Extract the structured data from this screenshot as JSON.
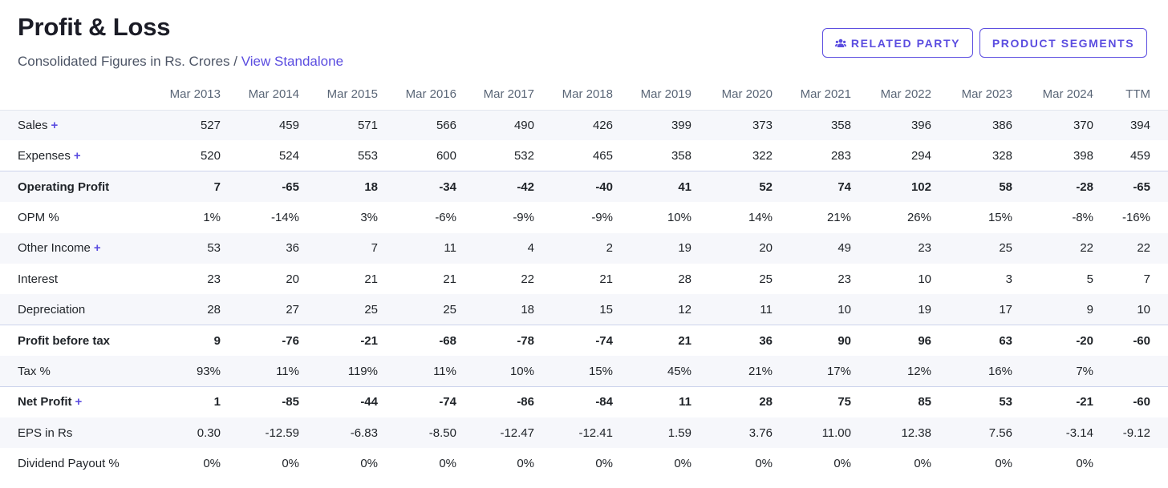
{
  "header": {
    "title": "Profit & Loss",
    "subtitle_prefix": "Consolidated Figures in Rs. Crores / ",
    "subtitle_link": "View Standalone"
  },
  "buttons": {
    "related_party": "RELATED PARTY",
    "product_segments": "PRODUCT SEGMENTS"
  },
  "table": {
    "columns": [
      "Mar 2013",
      "Mar 2014",
      "Mar 2015",
      "Mar 2016",
      "Mar 2017",
      "Mar 2018",
      "Mar 2019",
      "Mar 2020",
      "Mar 2021",
      "Mar 2022",
      "Mar 2023",
      "Mar 2024",
      "TTM"
    ],
    "rows": [
      {
        "label": "Sales",
        "expandable": true,
        "bold": false,
        "divider": false,
        "values": [
          "527",
          "459",
          "571",
          "566",
          "490",
          "426",
          "399",
          "373",
          "358",
          "396",
          "386",
          "370",
          "394"
        ]
      },
      {
        "label": "Expenses",
        "expandable": true,
        "bold": false,
        "divider": false,
        "values": [
          "520",
          "524",
          "553",
          "600",
          "532",
          "465",
          "358",
          "322",
          "283",
          "294",
          "328",
          "398",
          "459"
        ]
      },
      {
        "label": "Operating Profit",
        "expandable": false,
        "bold": true,
        "divider": true,
        "values": [
          "7",
          "-65",
          "18",
          "-34",
          "-42",
          "-40",
          "41",
          "52",
          "74",
          "102",
          "58",
          "-28",
          "-65"
        ]
      },
      {
        "label": "OPM %",
        "expandable": false,
        "bold": false,
        "divider": false,
        "values": [
          "1%",
          "-14%",
          "3%",
          "-6%",
          "-9%",
          "-9%",
          "10%",
          "14%",
          "21%",
          "26%",
          "15%",
          "-8%",
          "-16%"
        ]
      },
      {
        "label": "Other Income",
        "expandable": true,
        "bold": false,
        "divider": false,
        "values": [
          "53",
          "36",
          "7",
          "11",
          "4",
          "2",
          "19",
          "20",
          "49",
          "23",
          "25",
          "22",
          "22"
        ]
      },
      {
        "label": "Interest",
        "expandable": false,
        "bold": false,
        "divider": false,
        "values": [
          "23",
          "20",
          "21",
          "21",
          "22",
          "21",
          "28",
          "25",
          "23",
          "10",
          "3",
          "5",
          "7"
        ]
      },
      {
        "label": "Depreciation",
        "expandable": false,
        "bold": false,
        "divider": false,
        "values": [
          "28",
          "27",
          "25",
          "25",
          "18",
          "15",
          "12",
          "11",
          "10",
          "19",
          "17",
          "9",
          "10"
        ]
      },
      {
        "label": "Profit before tax",
        "expandable": false,
        "bold": true,
        "divider": true,
        "values": [
          "9",
          "-76",
          "-21",
          "-68",
          "-78",
          "-74",
          "21",
          "36",
          "90",
          "96",
          "63",
          "-20",
          "-60"
        ]
      },
      {
        "label": "Tax %",
        "expandable": false,
        "bold": false,
        "divider": false,
        "values": [
          "93%",
          "11%",
          "119%",
          "11%",
          "10%",
          "15%",
          "45%",
          "21%",
          "17%",
          "12%",
          "16%",
          "7%",
          ""
        ]
      },
      {
        "label": "Net Profit",
        "expandable": true,
        "bold": true,
        "divider": true,
        "values": [
          "1",
          "-85",
          "-44",
          "-74",
          "-86",
          "-84",
          "11",
          "28",
          "75",
          "85",
          "53",
          "-21",
          "-60"
        ]
      },
      {
        "label": "EPS in Rs",
        "expandable": false,
        "bold": false,
        "divider": false,
        "values": [
          "0.30",
          "-12.59",
          "-6.83",
          "-8.50",
          "-12.47",
          "-12.41",
          "1.59",
          "3.76",
          "11.00",
          "12.38",
          "7.56",
          "-3.14",
          "-9.12"
        ]
      },
      {
        "label": "Dividend Payout %",
        "expandable": false,
        "bold": false,
        "divider": false,
        "values": [
          "0%",
          "0%",
          "0%",
          "0%",
          "0%",
          "0%",
          "0%",
          "0%",
          "0%",
          "0%",
          "0%",
          "0%",
          ""
        ]
      }
    ],
    "plus_symbol": "+"
  },
  "colors": {
    "accent": "#5b4de0",
    "row_shade": "#f6f7fb",
    "divider": "#cdd4ec"
  },
  "icons": {
    "related_party": "users-icon"
  }
}
